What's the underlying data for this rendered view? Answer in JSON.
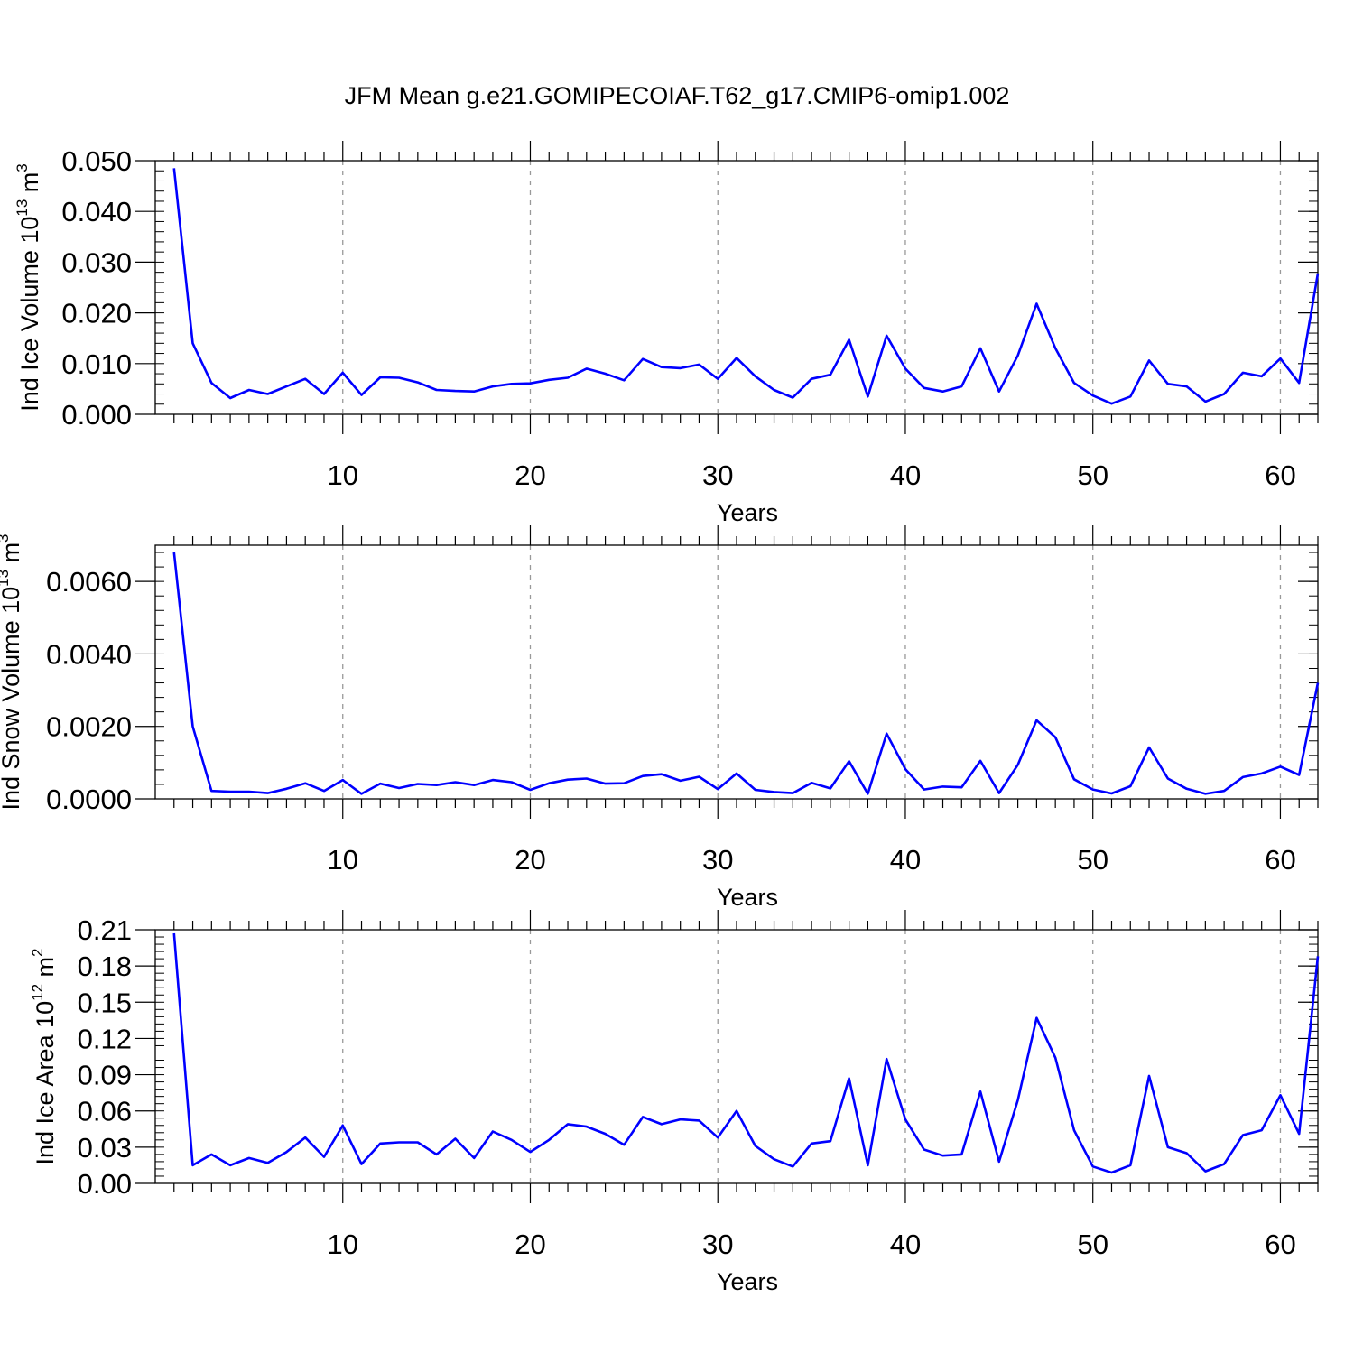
{
  "title": "JFM Mean g.e21.GOMIPECOIAF.T62_g17.CMIP6-omip1.002",
  "line_color": "#0000ff",
  "chart_data": [
    {
      "type": "line",
      "ylabel": "Ind Ice Volume 10",
      "ylabel_exp": "13",
      "ylabel_unit": " m",
      "ylabel_unit_exp": "3",
      "xlabel": "Years",
      "xlim": [
        0,
        62
      ],
      "ylim": [
        0,
        0.05
      ],
      "xticks": [
        10,
        20,
        30,
        40,
        50,
        60
      ],
      "yticks": [
        0,
        0.01,
        0.02,
        0.03,
        0.04,
        0.05
      ],
      "ytick_labels": [
        "0.000",
        "0.010",
        "0.020",
        "0.030",
        "0.040",
        "0.050"
      ],
      "grid": "vertical dashed at major x ticks",
      "series": [
        {
          "x": [
            1,
            2,
            3,
            4,
            5,
            6,
            7,
            8,
            9,
            10,
            11,
            12,
            13,
            14,
            15,
            16,
            17,
            18,
            19,
            20,
            21,
            22,
            23,
            24,
            25,
            26,
            27,
            28,
            29,
            30,
            31,
            32,
            33,
            34,
            35,
            36,
            37,
            38,
            39,
            40,
            41,
            42,
            43,
            44,
            45,
            46,
            47,
            48,
            49,
            50,
            51,
            52,
            53,
            54,
            55,
            56,
            57,
            58,
            59,
            60,
            61,
            62
          ],
          "values": [
            0.0485,
            0.014,
            0.0062,
            0.0032,
            0.0048,
            0.004,
            0.0055,
            0.007,
            0.004,
            0.0082,
            0.0038,
            0.0073,
            0.0072,
            0.0063,
            0.0048,
            0.0046,
            0.0045,
            0.0055,
            0.006,
            0.0061,
            0.0068,
            0.0072,
            0.009,
            0.008,
            0.0067,
            0.0109,
            0.0093,
            0.0091,
            0.0098,
            0.007,
            0.0111,
            0.0075,
            0.0048,
            0.0033,
            0.007,
            0.0078,
            0.0147,
            0.0035,
            0.0155,
            0.009,
            0.0052,
            0.0045,
            0.0055,
            0.013,
            0.0045,
            0.0116,
            0.0218,
            0.013,
            0.0062,
            0.0037,
            0.0021,
            0.0035,
            0.0106,
            0.006,
            0.0055,
            0.0025,
            0.004,
            0.0082,
            0.0075,
            0.011,
            0.0062,
            0.0278
          ]
        }
      ]
    },
    {
      "type": "line",
      "ylabel": "Ind Snow Volume 10",
      "ylabel_exp": "13",
      "ylabel_unit": " m",
      "ylabel_unit_exp": "3",
      "xlabel": "Years",
      "xlim": [
        0,
        62
      ],
      "ylim": [
        0,
        0.007
      ],
      "xticks": [
        10,
        20,
        30,
        40,
        50,
        60
      ],
      "yticks": [
        0,
        0.002,
        0.004,
        0.006
      ],
      "ytick_labels": [
        "0.0000",
        "0.0020",
        "0.0040",
        "0.0060"
      ],
      "grid": "vertical dashed at major x ticks",
      "series": [
        {
          "x": [
            1,
            2,
            3,
            4,
            5,
            6,
            7,
            8,
            9,
            10,
            11,
            12,
            13,
            14,
            15,
            16,
            17,
            18,
            19,
            20,
            21,
            22,
            23,
            24,
            25,
            26,
            27,
            28,
            29,
            30,
            31,
            32,
            33,
            34,
            35,
            36,
            37,
            38,
            39,
            40,
            41,
            42,
            43,
            44,
            45,
            46,
            47,
            48,
            49,
            50,
            51,
            52,
            53,
            54,
            55,
            56,
            57,
            58,
            59,
            60,
            61,
            62
          ],
          "values": [
            0.0068,
            0.002,
            0.00022,
            0.0002,
            0.0002,
            0.00016,
            0.00028,
            0.00043,
            0.00022,
            0.00052,
            0.00014,
            0.00042,
            0.0003,
            0.00041,
            0.00038,
            0.00046,
            0.00038,
            0.00052,
            0.00046,
            0.00025,
            0.00043,
            0.00053,
            0.00056,
            0.00042,
            0.00043,
            0.00063,
            0.00068,
            0.0005,
            0.00061,
            0.00027,
            0.0007,
            0.00025,
            0.00019,
            0.00016,
            0.00044,
            0.00029,
            0.00104,
            0.00014,
            0.0018,
            0.00082,
            0.00026,
            0.00034,
            0.00032,
            0.00105,
            0.00016,
            0.00094,
            0.00217,
            0.0017,
            0.00054,
            0.00026,
            0.00015,
            0.00035,
            0.00142,
            0.00056,
            0.00028,
            0.00014,
            0.00022,
            0.0006,
            0.0007,
            0.00089,
            0.00066,
            0.0032
          ]
        }
      ]
    },
    {
      "type": "line",
      "ylabel": "Ind Ice Area 10",
      "ylabel_exp": "12",
      "ylabel_unit": " m",
      "ylabel_unit_exp": "2",
      "xlabel": "Years",
      "xlim": [
        0,
        62
      ],
      "ylim": [
        0,
        0.21
      ],
      "xticks": [
        10,
        20,
        30,
        40,
        50,
        60
      ],
      "yticks": [
        0,
        0.03,
        0.06,
        0.09,
        0.12,
        0.15,
        0.18,
        0.21
      ],
      "ytick_labels": [
        "0.00",
        "0.03",
        "0.06",
        "0.09",
        "0.12",
        "0.15",
        "0.18",
        "0.21"
      ],
      "grid": "vertical dashed at major x ticks",
      "series": [
        {
          "x": [
            1,
            2,
            3,
            4,
            5,
            6,
            7,
            8,
            9,
            10,
            11,
            12,
            13,
            14,
            15,
            16,
            17,
            18,
            19,
            20,
            21,
            22,
            23,
            24,
            25,
            26,
            27,
            28,
            29,
            30,
            31,
            32,
            33,
            34,
            35,
            36,
            37,
            38,
            39,
            40,
            41,
            42,
            43,
            44,
            45,
            46,
            47,
            48,
            49,
            50,
            51,
            52,
            53,
            54,
            55,
            56,
            57,
            58,
            59,
            60,
            61,
            62
          ],
          "values": [
            0.207,
            0.015,
            0.024,
            0.015,
            0.021,
            0.017,
            0.026,
            0.038,
            0.022,
            0.048,
            0.016,
            0.033,
            0.034,
            0.034,
            0.024,
            0.037,
            0.021,
            0.043,
            0.036,
            0.026,
            0.036,
            0.049,
            0.047,
            0.041,
            0.032,
            0.055,
            0.049,
            0.053,
            0.052,
            0.038,
            0.06,
            0.031,
            0.02,
            0.014,
            0.033,
            0.035,
            0.087,
            0.015,
            0.103,
            0.053,
            0.028,
            0.023,
            0.024,
            0.076,
            0.018,
            0.069,
            0.137,
            0.104,
            0.044,
            0.014,
            0.009,
            0.015,
            0.089,
            0.03,
            0.025,
            0.01,
            0.016,
            0.04,
            0.044,
            0.073,
            0.041,
            0.188
          ]
        }
      ]
    }
  ]
}
